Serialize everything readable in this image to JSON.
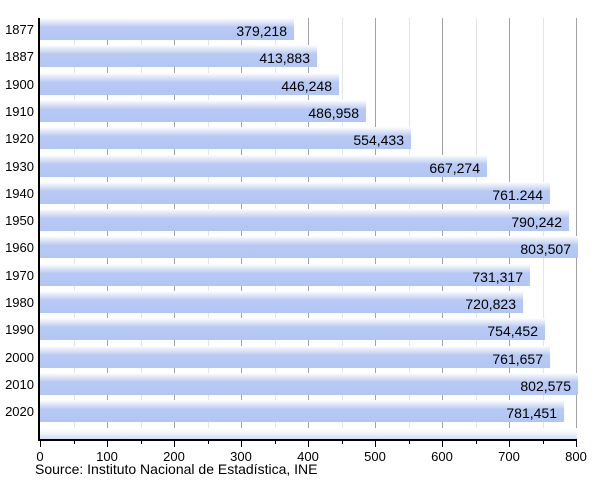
{
  "chart_data": {
    "type": "bar",
    "orientation": "horizontal",
    "title": "",
    "xlabel": "",
    "ylabel": "",
    "categories": [
      "1877",
      "1887",
      "1900",
      "1910",
      "1920",
      "1930",
      "1940",
      "1950",
      "1960",
      "1970",
      "1980",
      "1990",
      "2000",
      "2010",
      "2020"
    ],
    "values": [
      379218,
      413883,
      446248,
      486958,
      554433,
      667274,
      761244,
      790242,
      803507,
      731317,
      720823,
      754452,
      761657,
      802575,
      781451
    ],
    "value_labels": [
      "379,218",
      "413,883",
      "446,248",
      "486,958",
      "554,433",
      "667,274",
      "761.244",
      "790,242",
      "803,507",
      "731,317",
      "720,823",
      "754,452",
      "761,657",
      "802,575",
      "781,451"
    ],
    "xlim": [
      0,
      800
    ],
    "x_axis_unit": "thousands",
    "x_tick_labels": [
      "0",
      "100",
      "200",
      "300",
      "400",
      "500",
      "600",
      "700",
      "800"
    ],
    "x_major_tick_step": 100,
    "x_minor_tick_step": 50,
    "grid": "vertical",
    "legend": "none",
    "source": "Source: Instituto Nacional de Estadística, INE",
    "colors": {
      "bar_fill": "#b3c6f2",
      "bar_gradient_top": "#ffffff",
      "major_gridline": "#a2a2a2",
      "minor_gridline": "#e4e4e4",
      "axis": "#000000",
      "text": "#000000",
      "background": "#ffffff"
    }
  }
}
